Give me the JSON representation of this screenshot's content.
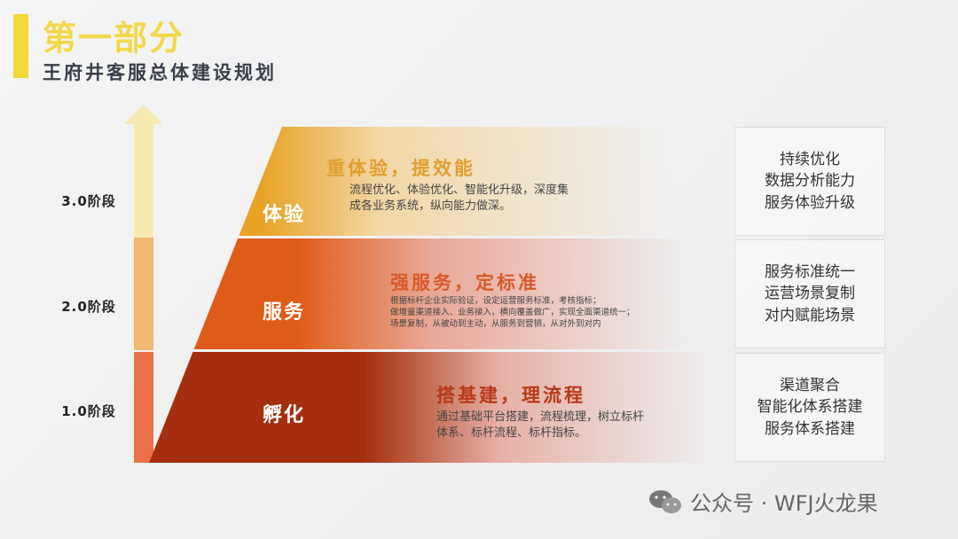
{
  "header": {
    "title": "第一部分",
    "subtitle": "王府井客服总体建设规划"
  },
  "stages": [
    "3.0阶段",
    "2.0阶段",
    "1.0阶段"
  ],
  "colors": {
    "accent": "#f2d83a",
    "layer_top": "#e8a224",
    "layer_mid": "#df5c18",
    "layer_bottom": "#a52e10"
  },
  "layers": [
    {
      "name": "体验",
      "heading": "重体验，提效能",
      "desc": [
        "流程优化、体验优化、智能化升级，深度集",
        "成各业务系统，纵向能力做深。"
      ],
      "box": [
        "持续优化",
        "数据分析能力",
        "服务体验升级"
      ]
    },
    {
      "name": "服务",
      "heading": "强服务，定标准",
      "desc": [
        "根据标杆企业实际验证，设定运营服务标准，考核指标；",
        "做增量渠道接入、业务接入，横向覆盖做广，实现全面渠道统一；",
        "场景复制，从被动到主动，从服务到营销，从对外到对内"
      ],
      "box": [
        "服务标准统一",
        "运营场景复制",
        "对内赋能场景"
      ]
    },
    {
      "name": "孵化",
      "heading": "搭基建，理流程",
      "desc": [
        "通过基础平台搭建，流程梳理，树立标杆",
        "体系、标杆流程、标杆指标。"
      ],
      "box": [
        "渠道聚合",
        "智能化体系搭建",
        "服务体系搭建"
      ]
    }
  ],
  "watermark": {
    "icon": "wechat-icon",
    "text": "公众号 · WFJ火龙果"
  }
}
